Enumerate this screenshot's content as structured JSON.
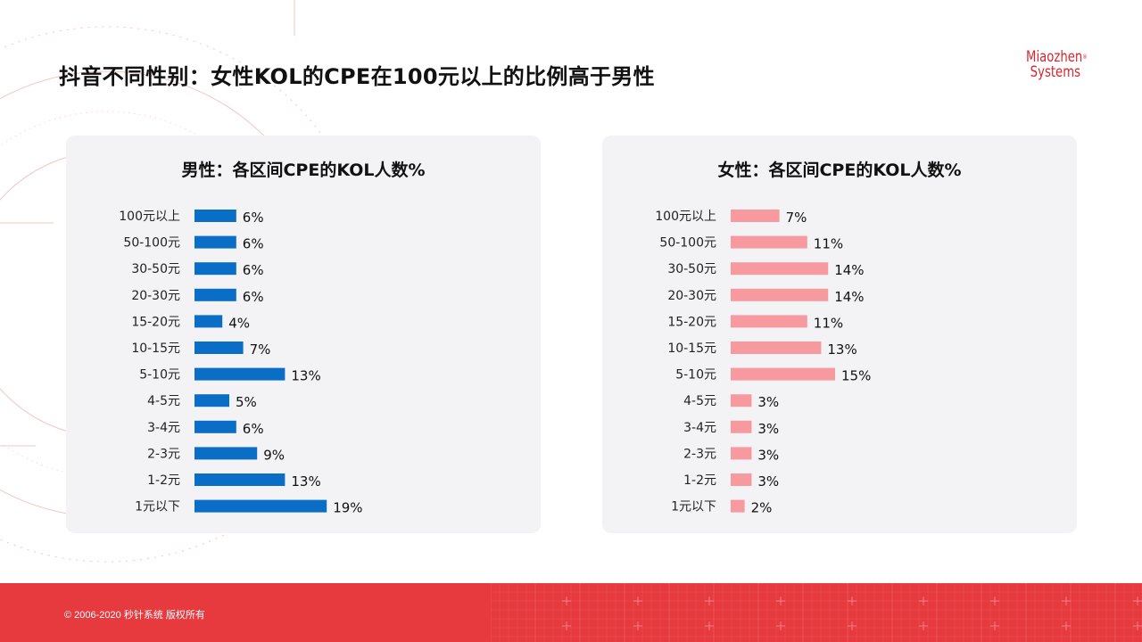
{
  "page": {
    "title": "抖音不同性别：女性KOL的CPE在100元以上的比例高于男性",
    "logo_line1": "Miaozhen",
    "logo_line2": "Systems",
    "logo_mark": "®",
    "copyright": "© 2006-2020 秒针系统 版权所有"
  },
  "colors": {
    "male_bar": "#0a6ec7",
    "female_bar": "#f79aa0",
    "accent": "#e63a3f"
  },
  "chart_data": [
    {
      "type": "bar",
      "orientation": "horizontal",
      "title": "男性：各区间CPE的KOL人数%",
      "categories": [
        "100元以上",
        "50-100元",
        "30-50元",
        "20-30元",
        "15-20元",
        "10-15元",
        "5-10元",
        "4-5元",
        "3-4元",
        "2-3元",
        "1-2元",
        "1元以下"
      ],
      "values": [
        6,
        6,
        6,
        6,
        4,
        7,
        13,
        5,
        6,
        9,
        13,
        19
      ],
      "value_labels": [
        "6%",
        "6%",
        "6%",
        "6%",
        "4%",
        "7%",
        "13%",
        "5%",
        "6%",
        "9%",
        "13%",
        "19%"
      ],
      "color": "#0a6ec7",
      "xlim": [
        0,
        20
      ]
    },
    {
      "type": "bar",
      "orientation": "horizontal",
      "title": "女性：各区间CPE的KOL人数%",
      "categories": [
        "100元以上",
        "50-100元",
        "30-50元",
        "20-30元",
        "15-20元",
        "10-15元",
        "5-10元",
        "4-5元",
        "3-4元",
        "2-3元",
        "1-2元",
        "1元以下"
      ],
      "values": [
        7,
        11,
        14,
        14,
        11,
        13,
        15,
        3,
        3,
        3,
        3,
        2
      ],
      "value_labels": [
        "7%",
        "11%",
        "14%",
        "14%",
        "11%",
        "13%",
        "15%",
        "3%",
        "3%",
        "3%",
        "3%",
        "2%"
      ],
      "color": "#f79aa0",
      "xlim": [
        0,
        20
      ]
    }
  ]
}
